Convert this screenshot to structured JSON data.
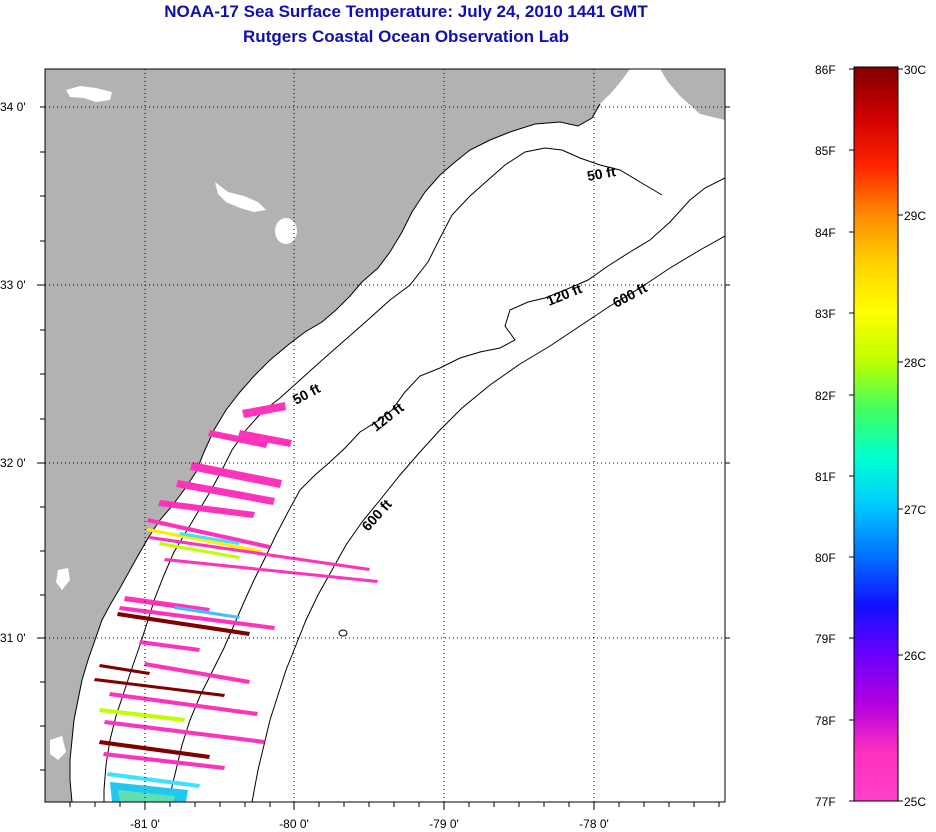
{
  "title": {
    "line1": "NOAA-17 Sea Surface Temperature:  July 24, 2010 1441 GMT",
    "line2": "Rutgers Coastal Ocean Observation Lab"
  },
  "map": {
    "lat_labels": [
      "34 0'",
      "33 0'",
      "32 0'",
      "31 0'"
    ],
    "lon_labels": [
      "-81 0'",
      "-80 0'",
      "-79 0'",
      "-78 0'"
    ],
    "contour_labels": [
      "50 ft",
      "120 ft",
      "600 ft",
      "50 ft",
      "120 ft",
      "600 ft"
    ],
    "colors": {
      "land": "#b2b2b2",
      "ocean": "#ffffff",
      "cloud_mask": "#ffffff",
      "contour": "#000000",
      "sst_warm_pixels": "#ff33bb"
    }
  },
  "colorbar": {
    "fahrenheit_labels": [
      "86F",
      "85F",
      "84F",
      "83F",
      "82F",
      "81F",
      "80F",
      "79F",
      "78F",
      "77F"
    ],
    "celsius_labels": [
      "30C",
      "29C",
      "28C",
      "27C",
      "26C",
      "25C"
    ],
    "gradient_stops": [
      "#800000",
      "#cc0000",
      "#ff2200",
      "#ff8800",
      "#ffd000",
      "#ffff00",
      "#c0ff00",
      "#40ff60",
      "#00ffd0",
      "#00c8ff",
      "#0070ff",
      "#1010ff",
      "#6a00ff",
      "#b000e0",
      "#ff30c0",
      "#ff40c8"
    ]
  }
}
